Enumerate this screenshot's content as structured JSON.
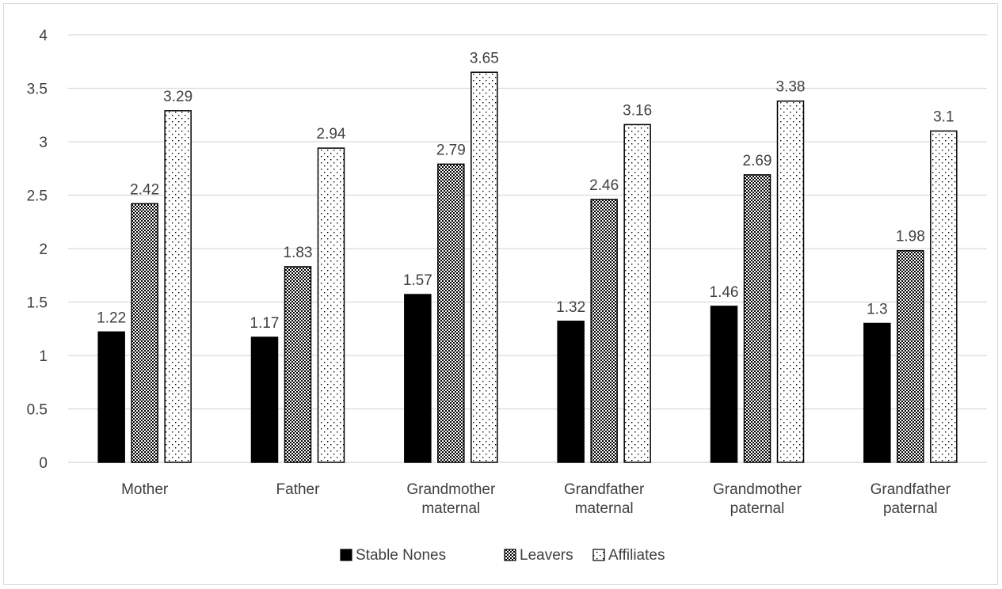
{
  "chart_data": {
    "type": "bar",
    "categories": [
      [
        "Mother"
      ],
      [
        "Father"
      ],
      [
        "Grandmother",
        "maternal"
      ],
      [
        "Grandfather",
        "maternal"
      ],
      [
        "Grandmother",
        "paternal"
      ],
      [
        "Grandfather",
        "paternal"
      ]
    ],
    "series": [
      {
        "name": "Stable Nones",
        "values": [
          1.22,
          1.17,
          1.57,
          1.32,
          1.46,
          1.3
        ],
        "pattern": "solid",
        "color": "#000000"
      },
      {
        "name": "Leavers",
        "values": [
          2.42,
          1.83,
          2.79,
          2.46,
          2.69,
          1.98
        ],
        "pattern": "checker",
        "color": "#000000"
      },
      {
        "name": "Affiliates",
        "values": [
          3.29,
          2.94,
          3.65,
          3.16,
          3.38,
          3.1
        ],
        "pattern": "dots",
        "color": "#000000"
      }
    ],
    "ylim": [
      0,
      4
    ],
    "yticks": [
      "0",
      "0.5",
      "1",
      "1.5",
      "2",
      "2.5",
      "3",
      "3.5",
      "4"
    ],
    "grid": true,
    "legend_position": "bottom",
    "title": "",
    "xlabel": "",
    "ylabel": ""
  }
}
